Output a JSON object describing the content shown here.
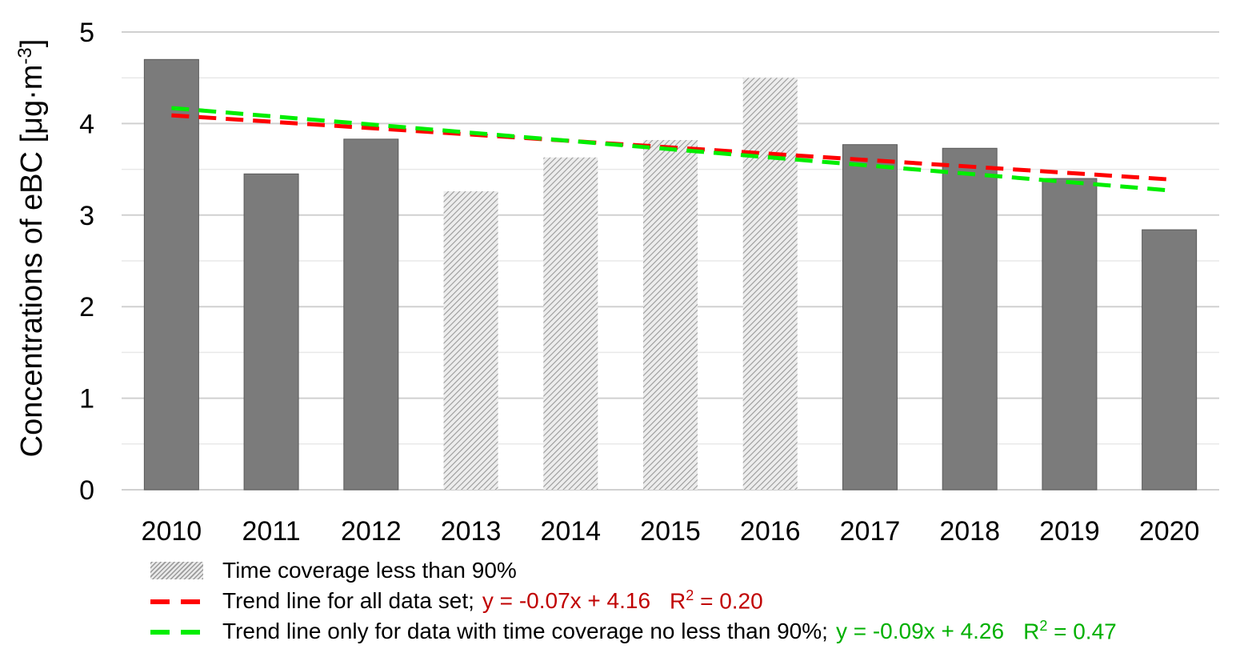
{
  "chart_data": {
    "type": "bar",
    "categories": [
      "2010",
      "2011",
      "2012",
      "2013",
      "2014",
      "2015",
      "2016",
      "2017",
      "2018",
      "2019",
      "2020"
    ],
    "values": [
      4.7,
      3.45,
      3.83,
      3.26,
      3.63,
      3.82,
      4.5,
      3.77,
      3.73,
      3.4,
      2.84
    ],
    "low_coverage": [
      false,
      false,
      false,
      true,
      true,
      true,
      true,
      false,
      false,
      false,
      false
    ],
    "ylim": [
      0,
      5
    ],
    "yticks": [
      "0",
      "1",
      "2",
      "3",
      "4",
      "5"
    ],
    "ylabel": "Concentrations of eBC [μg·m",
    "ylabel_sup": "-3",
    "ylabel_close": "]",
    "colors": {
      "bar": "#7b7b7b",
      "hatch": "#9a9a9a",
      "trend_all": "#ff0000",
      "trend_high": "#00ee00",
      "eq_all": "#c00000",
      "eq_high": "#00b000"
    },
    "trend_all": {
      "slope": -0.07,
      "intercept": 4.16
    },
    "trend_high": {
      "slope": -0.09,
      "intercept": 4.26
    },
    "legend": {
      "hatch_label": "Time coverage less than 90%",
      "trend_all_label": "Trend line for all data set;",
      "trend_all_eq": "y = -0.07x + 4.16",
      "trend_all_r2_prefix": "R",
      "trend_all_r2_sup": "2",
      "trend_all_r2_value": " = 0.20",
      "trend_high_label": "Trend line only for data with time coverage no less than 90%;",
      "trend_high_eq": "y = -0.09x + 4.26",
      "trend_high_r2_prefix": "R",
      "trend_high_r2_sup": "2",
      "trend_high_r2_value": " = 0.47"
    }
  }
}
